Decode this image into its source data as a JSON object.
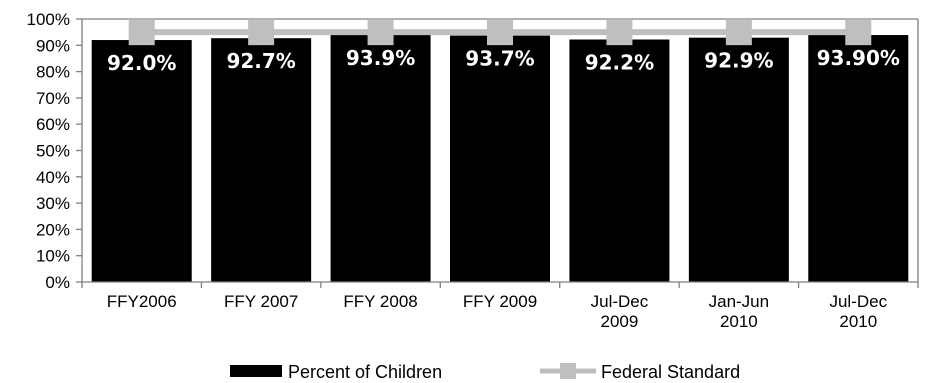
{
  "chart_data": {
    "type": "bar",
    "categories": [
      [
        "FFY2006"
      ],
      [
        "FFY 2007"
      ],
      [
        "FFY 2008"
      ],
      [
        "FFY 2009"
      ],
      [
        "Jul-Dec",
        "2009"
      ],
      [
        "Jan-Jun",
        "2010"
      ],
      [
        "Jul-Dec",
        "2010"
      ]
    ],
    "series": [
      {
        "name": "Percent of Children",
        "type": "bar",
        "color": "#000000",
        "values": [
          92.0,
          92.7,
          93.9,
          93.7,
          92.2,
          92.9,
          93.9
        ],
        "labels": [
          "92.0%",
          "92.7%",
          "93.9%",
          "93.7%",
          "92.2%",
          "92.9%",
          "93.90%"
        ]
      },
      {
        "name": "Federal Standard",
        "type": "line",
        "color": "#bfbfbf",
        "values": [
          95,
          95,
          95,
          95,
          95,
          95,
          95
        ]
      }
    ],
    "ylim": [
      0,
      100
    ],
    "yticks": [
      0,
      10,
      20,
      30,
      40,
      50,
      60,
      70,
      80,
      90,
      100
    ],
    "ytick_format": "{v}%",
    "legend_position": "bottom",
    "grid": false
  }
}
